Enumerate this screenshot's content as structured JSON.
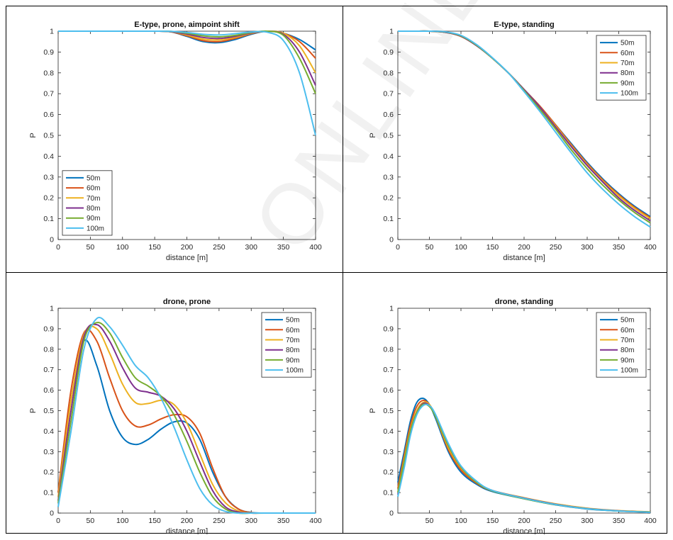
{
  "watermark": "ONLINE F",
  "series_colors": [
    "#0072BD",
    "#D95319",
    "#EDB120",
    "#7E2F8E",
    "#77AC30",
    "#4DBEEE"
  ],
  "chart_data": [
    {
      "type": "line",
      "title": "E-type, prone, aimpoint shift",
      "xlabel": "distance [m]",
      "ylabel": "P",
      "xlim": [
        0,
        400
      ],
      "ylim": [
        0,
        1
      ],
      "xticks": [
        0,
        50,
        100,
        150,
        200,
        250,
        300,
        350,
        400
      ],
      "yticks": [
        0,
        0.1,
        0.2,
        0.3,
        0.4,
        0.5,
        0.6,
        0.7,
        0.8,
        0.9,
        1
      ],
      "legend_position": "bottom-left",
      "grid": false,
      "x": [
        0,
        25,
        50,
        75,
        100,
        125,
        150,
        175,
        200,
        225,
        250,
        275,
        300,
        325,
        350,
        375,
        400
      ],
      "series": [
        {
          "name": "50m",
          "values": [
            1,
            1,
            1,
            1,
            1,
            1,
            1,
            0.997,
            0.975,
            0.95,
            0.945,
            0.96,
            0.985,
            1,
            0.99,
            0.96,
            0.91
          ]
        },
        {
          "name": "60m",
          "values": [
            1,
            1,
            1,
            1,
            1,
            1,
            1,
            0.997,
            0.978,
            0.955,
            0.95,
            0.965,
            0.988,
            1,
            0.99,
            0.95,
            0.87
          ]
        },
        {
          "name": "70m",
          "values": [
            1,
            1,
            1,
            1,
            1,
            1,
            1,
            0.998,
            0.982,
            0.962,
            0.958,
            0.97,
            0.99,
            1,
            0.99,
            0.93,
            0.8
          ]
        },
        {
          "name": "80m",
          "values": [
            1,
            1,
            1,
            1,
            1,
            1,
            1,
            0.998,
            0.986,
            0.97,
            0.965,
            0.975,
            0.992,
            1,
            0.985,
            0.9,
            0.74
          ]
        },
        {
          "name": "90m",
          "values": [
            1,
            1,
            1,
            1,
            1,
            1,
            1,
            0.999,
            0.99,
            0.978,
            0.973,
            0.98,
            0.994,
            1,
            0.98,
            0.87,
            0.7
          ]
        },
        {
          "name": "100m",
          "values": [
            1,
            1,
            1,
            1,
            1,
            1,
            1,
            0.999,
            0.994,
            0.985,
            0.982,
            0.988,
            0.996,
            0.995,
            0.955,
            0.8,
            0.5
          ]
        }
      ]
    },
    {
      "type": "line",
      "title": "E-type, standing",
      "xlabel": "distance [m]",
      "ylabel": "P",
      "xlim": [
        0,
        400
      ],
      "ylim": [
        0,
        1
      ],
      "xticks": [
        0,
        50,
        100,
        150,
        200,
        250,
        300,
        350,
        400
      ],
      "yticks": [
        0,
        0.1,
        0.2,
        0.3,
        0.4,
        0.5,
        0.6,
        0.7,
        0.8,
        0.9,
        1
      ],
      "legend_position": "top-right",
      "grid": false,
      "x": [
        0,
        25,
        50,
        75,
        100,
        125,
        150,
        175,
        200,
        225,
        250,
        275,
        300,
        325,
        350,
        375,
        400
      ],
      "series": [
        {
          "name": "50m",
          "values": [
            1,
            1,
            1,
            0.995,
            0.975,
            0.93,
            0.87,
            0.8,
            0.72,
            0.64,
            0.55,
            0.46,
            0.37,
            0.29,
            0.22,
            0.16,
            0.11
          ]
        },
        {
          "name": "60m",
          "values": [
            1,
            1,
            1,
            0.995,
            0.975,
            0.93,
            0.87,
            0.8,
            0.72,
            0.64,
            0.55,
            0.455,
            0.365,
            0.285,
            0.215,
            0.155,
            0.105
          ]
        },
        {
          "name": "70m",
          "values": [
            1,
            1,
            1,
            0.995,
            0.975,
            0.93,
            0.87,
            0.8,
            0.72,
            0.635,
            0.545,
            0.45,
            0.36,
            0.28,
            0.21,
            0.15,
            0.1
          ]
        },
        {
          "name": "80m",
          "values": [
            1,
            1,
            1,
            0.995,
            0.976,
            0.93,
            0.87,
            0.8,
            0.72,
            0.635,
            0.54,
            0.445,
            0.355,
            0.275,
            0.2,
            0.14,
            0.09
          ]
        },
        {
          "name": "90m",
          "values": [
            1,
            1,
            1,
            0.996,
            0.978,
            0.932,
            0.87,
            0.8,
            0.715,
            0.625,
            0.53,
            0.43,
            0.34,
            0.26,
            0.19,
            0.13,
            0.08
          ]
        },
        {
          "name": "100m",
          "values": [
            1,
            1,
            1,
            0.997,
            0.98,
            0.935,
            0.872,
            0.8,
            0.71,
            0.615,
            0.515,
            0.415,
            0.32,
            0.24,
            0.17,
            0.11,
            0.06
          ]
        }
      ]
    },
    {
      "type": "line",
      "title": "drone, prone",
      "xlabel": "distance [m]",
      "ylabel": "P",
      "xlim": [
        0,
        400
      ],
      "ylim": [
        0,
        1
      ],
      "xticks": [
        0,
        50,
        100,
        150,
        200,
        250,
        300,
        350,
        400
      ],
      "yticks": [
        0,
        0.1,
        0.2,
        0.3,
        0.4,
        0.5,
        0.6,
        0.7,
        0.8,
        0.9,
        1
      ],
      "legend_position": "top-right",
      "grid": false,
      "x": [
        0,
        20,
        40,
        60,
        80,
        100,
        120,
        140,
        160,
        180,
        200,
        220,
        240,
        260,
        280,
        300,
        320,
        350,
        400
      ],
      "series": [
        {
          "name": "50m",
          "values": [
            0.1,
            0.55,
            0.84,
            0.72,
            0.5,
            0.37,
            0.335,
            0.36,
            0.41,
            0.445,
            0.44,
            0.36,
            0.2,
            0.08,
            0.02,
            0.003,
            0,
            0,
            0
          ]
        },
        {
          "name": "60m",
          "values": [
            0.1,
            0.6,
            0.88,
            0.84,
            0.66,
            0.5,
            0.425,
            0.43,
            0.46,
            0.48,
            0.47,
            0.39,
            0.22,
            0.08,
            0.02,
            0.002,
            0,
            0,
            0
          ]
        },
        {
          "name": "70m",
          "values": [
            0.08,
            0.55,
            0.87,
            0.9,
            0.78,
            0.63,
            0.54,
            0.535,
            0.55,
            0.53,
            0.44,
            0.29,
            0.14,
            0.05,
            0.01,
            0,
            0,
            0,
            0
          ]
        },
        {
          "name": "80m",
          "values": [
            0.06,
            0.5,
            0.86,
            0.92,
            0.84,
            0.71,
            0.61,
            0.59,
            0.57,
            0.51,
            0.4,
            0.25,
            0.11,
            0.03,
            0.005,
            0,
            0,
            0,
            0
          ]
        },
        {
          "name": "90m",
          "values": [
            0.05,
            0.45,
            0.84,
            0.93,
            0.88,
            0.76,
            0.66,
            0.62,
            0.57,
            0.48,
            0.35,
            0.2,
            0.08,
            0.02,
            0,
            0,
            0,
            0,
            0
          ]
        },
        {
          "name": "100m",
          "values": [
            0.03,
            0.4,
            0.8,
            0.95,
            0.91,
            0.82,
            0.72,
            0.66,
            0.56,
            0.42,
            0.26,
            0.12,
            0.04,
            0.008,
            0,
            0,
            0,
            0,
            0
          ]
        }
      ]
    },
    {
      "type": "line",
      "title": "drone, standing",
      "xlabel": "distance [m]",
      "ylabel": "P",
      "xlim": [
        0,
        400
      ],
      "ylim": [
        0,
        1
      ],
      "xticks": [
        50,
        100,
        150,
        200,
        250,
        300,
        350,
        400
      ],
      "yticks": [
        0,
        0.1,
        0.2,
        0.3,
        0.4,
        0.5,
        0.6,
        0.7,
        0.8,
        0.9,
        1
      ],
      "legend_position": "top-right",
      "grid": false,
      "x": [
        0,
        10,
        20,
        30,
        40,
        50,
        60,
        80,
        100,
        125,
        150,
        200,
        250,
        300,
        350,
        400
      ],
      "series": [
        {
          "name": "50m",
          "values": [
            0.15,
            0.3,
            0.45,
            0.54,
            0.56,
            0.53,
            0.46,
            0.3,
            0.2,
            0.14,
            0.105,
            0.07,
            0.04,
            0.02,
            0.01,
            0.005
          ]
        },
        {
          "name": "60m",
          "values": [
            0.12,
            0.28,
            0.43,
            0.52,
            0.55,
            0.53,
            0.47,
            0.31,
            0.21,
            0.145,
            0.108,
            0.072,
            0.042,
            0.022,
            0.011,
            0.005
          ]
        },
        {
          "name": "70m",
          "values": [
            0.1,
            0.26,
            0.41,
            0.5,
            0.54,
            0.53,
            0.47,
            0.32,
            0.22,
            0.15,
            0.11,
            0.075,
            0.045,
            0.024,
            0.012,
            0.006
          ]
        },
        {
          "name": "80m",
          "values": [
            0.09,
            0.24,
            0.4,
            0.49,
            0.535,
            0.525,
            0.475,
            0.33,
            0.225,
            0.152,
            0.11,
            0.073,
            0.043,
            0.022,
            0.011,
            0.005
          ]
        },
        {
          "name": "90m",
          "values": [
            0.1,
            0.25,
            0.4,
            0.49,
            0.53,
            0.52,
            0.47,
            0.33,
            0.225,
            0.15,
            0.108,
            0.07,
            0.041,
            0.021,
            0.01,
            0.005
          ]
        },
        {
          "name": "100m",
          "values": [
            0.08,
            0.22,
            0.38,
            0.48,
            0.525,
            0.525,
            0.48,
            0.34,
            0.23,
            0.155,
            0.11,
            0.072,
            0.042,
            0.021,
            0.01,
            0.004
          ]
        }
      ]
    }
  ]
}
